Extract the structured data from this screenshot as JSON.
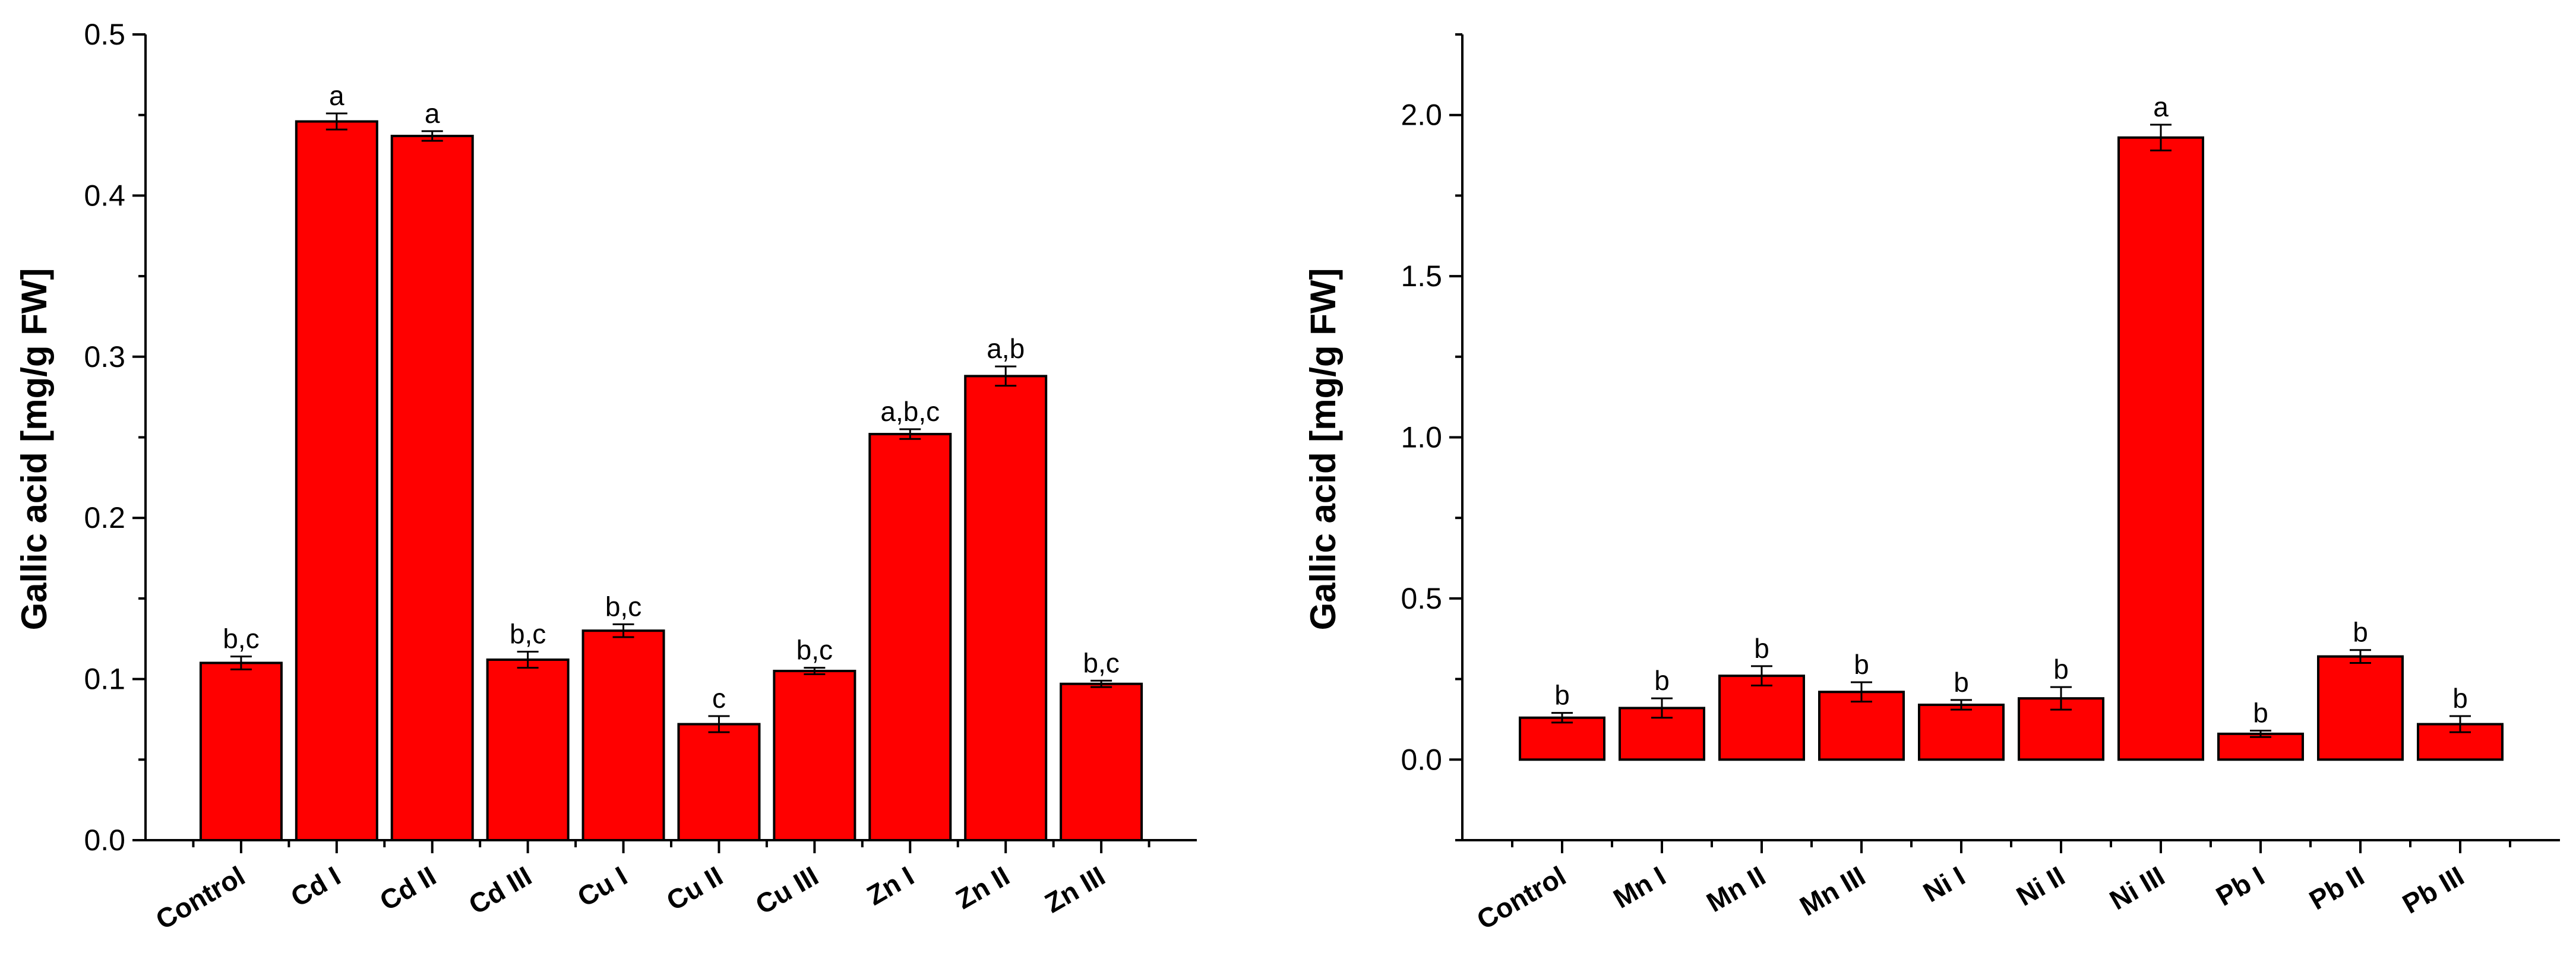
{
  "chart_data": [
    {
      "type": "bar",
      "title": "",
      "xlabel": "",
      "ylabel": "Gallic acid [mg/g FW]",
      "ylim": [
        0,
        0.5
      ],
      "yticks": [
        "0.0",
        "0.1",
        "0.2",
        "0.3",
        "0.4",
        "0.5"
      ],
      "grid": false,
      "bar_color": "#ff0000",
      "categories": [
        "Control",
        "Cd I",
        "Cd II",
        "Cd III",
        "Cu I",
        "Cu II",
        "Cu III",
        "Zn I",
        "Zn II",
        "Zn III"
      ],
      "values": [
        0.11,
        0.446,
        0.437,
        0.112,
        0.13,
        0.072,
        0.105,
        0.252,
        0.288,
        0.097
      ],
      "errors": [
        0.004,
        0.005,
        0.003,
        0.005,
        0.004,
        0.005,
        0.002,
        0.003,
        0.006,
        0.002
      ],
      "annotations": [
        "b,c",
        "a",
        "a",
        "b,c",
        "b,c",
        "c",
        "b,c",
        "a,b,c",
        "a,b",
        "b,c"
      ]
    },
    {
      "type": "bar",
      "title": "",
      "xlabel": "",
      "ylabel": "Gallic acid [mg/g FW]",
      "ylim": [
        -0.25,
        2.25
      ],
      "yticks": [
        "0.0",
        "0.5",
        "1.0",
        "1.5",
        "2.0"
      ],
      "grid": false,
      "bar_color": "#ff0000",
      "categories": [
        "Control",
        "Mn I",
        "Mn II",
        "Mn III",
        "Ni I",
        "Ni II",
        "Ni III",
        "Pb I",
        "Pb II",
        "Pb III"
      ],
      "values": [
        0.13,
        0.16,
        0.26,
        0.21,
        0.17,
        0.19,
        1.93,
        0.08,
        0.32,
        0.11
      ],
      "errors": [
        0.015,
        0.03,
        0.03,
        0.03,
        0.015,
        0.035,
        0.04,
        0.01,
        0.02,
        0.025
      ],
      "annotations": [
        "b",
        "b",
        "b",
        "b",
        "b",
        "b",
        "a",
        "b",
        "b",
        "b"
      ]
    }
  ]
}
